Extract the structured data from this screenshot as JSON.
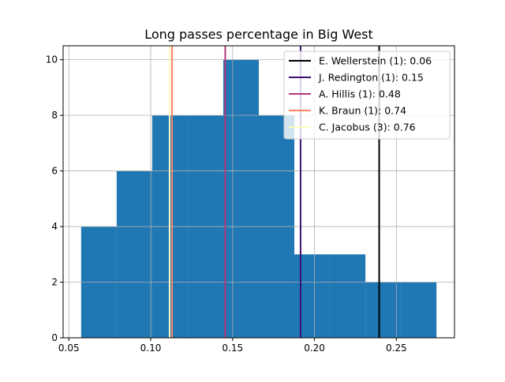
{
  "chart_data": {
    "type": "bar",
    "title": "Long passes percentage in Big West",
    "xlabel": "",
    "ylabel": "",
    "xlim": [
      0.0465,
      0.2855
    ],
    "ylim": [
      0,
      10.5
    ],
    "grid": true,
    "xticks": [
      {
        "value": 0.05,
        "label": "0.05"
      },
      {
        "value": 0.1,
        "label": "0.10"
      },
      {
        "value": 0.15,
        "label": "0.15"
      },
      {
        "value": 0.2,
        "label": "0.20"
      },
      {
        "value": 0.25,
        "label": "0.25"
      }
    ],
    "yticks": [
      {
        "value": 0,
        "label": "0"
      },
      {
        "value": 2,
        "label": "2"
      },
      {
        "value": 4,
        "label": "4"
      },
      {
        "value": 6,
        "label": "6"
      },
      {
        "value": 8,
        "label": "8"
      },
      {
        "value": 10,
        "label": "10"
      }
    ],
    "bar_color": "#1f77b4",
    "bins": [
      {
        "x0": 0.0575,
        "x1": 0.0792,
        "count": 4
      },
      {
        "x0": 0.0792,
        "x1": 0.1009,
        "count": 6
      },
      {
        "x0": 0.1009,
        "x1": 0.1226,
        "count": 8
      },
      {
        "x0": 0.1226,
        "x1": 0.1443,
        "count": 8
      },
      {
        "x0": 0.1443,
        "x1": 0.166,
        "count": 10
      },
      {
        "x0": 0.166,
        "x1": 0.1877,
        "count": 8
      },
      {
        "x0": 0.1877,
        "x1": 0.2094,
        "count": 3
      },
      {
        "x0": 0.2094,
        "x1": 0.2311,
        "count": 3
      },
      {
        "x0": 0.2311,
        "x1": 0.2528,
        "count": 2
      },
      {
        "x0": 0.2528,
        "x1": 0.2745,
        "count": 2
      }
    ],
    "reference_lines": [
      {
        "x": 0.2395,
        "color": "#000000",
        "label": "E. Wellerstein (1): 0.06"
      },
      {
        "x": 0.1915,
        "color": "#3b0f70",
        "label": "J. Redington (1): 0.15"
      },
      {
        "x": 0.1455,
        "color": "#b5367a",
        "label": "A. Hillis (1): 0.48"
      },
      {
        "x": 0.113,
        "color": "#fb8761",
        "label": "K. Braun (1): 0.74"
      },
      {
        "x": 0.1115,
        "color": "#fcfdbf",
        "label": "C. Jacobus (3): 0.76"
      }
    ],
    "legend_position": "top-right"
  }
}
